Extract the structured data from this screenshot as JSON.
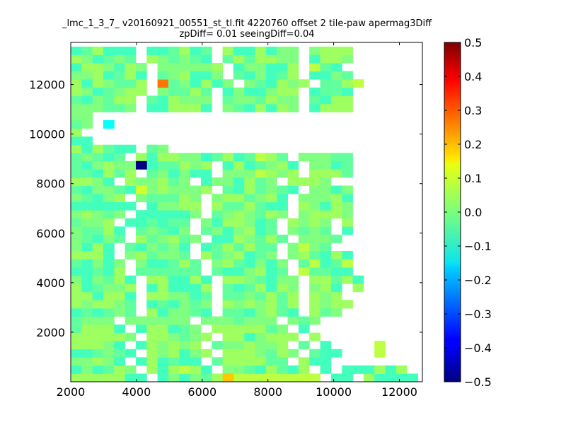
{
  "chart_data": {
    "type": "heatmap",
    "title_line1": "_lmc_1_3_7_ v20160921_00551_st_tl.fit 4220760 offset 2 tile-paw apermag3Diff",
    "title_line2": "zpDiff= 0.01 seeingDiff=0.04",
    "xlabel": "",
    "ylabel": "",
    "xlim": [
      2000,
      12700
    ],
    "ylim": [
      0,
      13700
    ],
    "x_ticks": [
      2000,
      4000,
      6000,
      8000,
      10000,
      12000
    ],
    "y_ticks": [
      2000,
      4000,
      6000,
      8000,
      10000,
      12000
    ],
    "colorbar": {
      "colormap": "jet",
      "range": [
        -0.5,
        0.5
      ],
      "ticks": [
        0.5,
        0.4,
        0.3,
        0.2,
        0.1,
        0.0,
        -0.1,
        -0.2,
        -0.3,
        -0.4,
        -0.5
      ],
      "tick_labels": [
        "0.5",
        "0.4",
        "0.3",
        "0.2",
        "0.1",
        "0.0",
        "−0.1",
        "−0.2",
        "−0.3",
        "−0.4",
        "−0.5"
      ]
    },
    "grid": false,
    "cell_size": [
      330,
      330
    ],
    "x_centers": [
      2165,
      2495,
      2825,
      3155,
      3485,
      3815,
      4145,
      4475,
      4805,
      5135,
      5465,
      5795,
      6125,
      6455,
      6785,
      7115,
      7445,
      7775,
      8105,
      8435,
      8765,
      9095,
      9425,
      9755,
      10085,
      10415,
      10745,
      11075,
      11405,
      11735,
      12065,
      12395
    ],
    "y_centers": [
      165,
      495,
      825,
      1155,
      1485,
      1815,
      2145,
      2475,
      2805,
      3135,
      3465,
      3795,
      4125,
      4455,
      4785,
      5115,
      5445,
      5775,
      6105,
      6435,
      6765,
      7095,
      7425,
      7755,
      8085,
      8415,
      8745,
      9075,
      9405,
      9735,
      10065,
      10395,
      10725,
      11055,
      11385,
      11715,
      12045,
      12375,
      12705,
      13035,
      13365
    ],
    "row_values": [
      "3333300 020213 99999999 00 30000N",
      "020132 303930 22103103 0 000303",
      "22320 030100 1333311 300 NNNN",
      "001210 323323 3332132 100 NNNN",
      "33320 032323 1223223 1 0",
      "333332 332123 3302333 3",
      "13330 033012 3333312 0 NNNN",
      "1222 222222 2221222 212 N",
      "010121 302210 1102310 312 N",
      "323321 010212 3232313 3233N",
      "330330 332201 1121313 323",
      "301223 030003 1013035 230 3",
      "202130 330030 3321022 33130",
      "00103 111111 1002301 01100",
      "10202 200131 2310202 13013",
      "3330 231221 3123012 231030",
      "2030 102120 0131311 2221",
      "21021 312312 0032131 2221",
      "21130 12102 1202301 2121 0",
      "1223 001011 2033201 3232 3",
      "23212 000002 1232132 23332",
      "000000 02233 3113100 32032",
      "21023 211132 2331230 22230",
      "102210 232223 1031210 2202",
      "3320 322312 0220312 3332",
      "110313 120200 2223323 3331",
      "102322 011323 0301230 2201",
      "12101 303322 1301031 22211",
      "303100 12",
      "00",
      "3",
      "12",
      "22",
      "222112 003330 2103032 0333",
      "102133 103222 1221322 1033",
      "3201233 21131 0200233 0110",
      "3032113 2120302 210323 1130",
      "2230130 123002 102013 0021",
      "0332232 222223 022003 210",
      "320121 321210 1313322 0332",
      "013000 001301 3003022 2333"
    ],
    "anomalies": [
      {
        "x": 6785,
        "y": 165,
        "value": 0.18
      },
      {
        "x": 4805,
        "y": 12045,
        "value": 0.26
      },
      {
        "x": 4145,
        "y": 7755,
        "value": 0.08
      },
      {
        "x": 4145,
        "y": 8745,
        "value": -0.5
      },
      {
        "x": 3155,
        "y": 10395,
        "value": -0.12
      },
      {
        "x": 9425,
        "y": 12705,
        "value": 0.06
      },
      {
        "x": 9425,
        "y": 4785,
        "value": 0.06
      },
      {
        "x": 10415,
        "y": 4785,
        "value": 0.06
      },
      {
        "x": 11405,
        "y": 1485,
        "value": 0.06
      },
      {
        "x": 11405,
        "y": 1155,
        "value": 0.06
      },
      {
        "x": 10745,
        "y": 12045,
        "value": 0.06
      },
      {
        "x": 7775,
        "y": 8415,
        "value": 0.06
      },
      {
        "x": 7775,
        "y": 9075,
        "value": 0.06
      },
      {
        "x": 9095,
        "y": 5445,
        "value": 0.06
      },
      {
        "x": 9095,
        "y": 4455,
        "value": 0.06
      },
      {
        "x": 5465,
        "y": 1155,
        "value": -0.06
      },
      {
        "x": 2825,
        "y": 5775,
        "value": -0.06
      },
      {
        "x": 3815,
        "y": 4125,
        "value": -0.06
      },
      {
        "x": 6125,
        "y": 9075,
        "value": -0.07
      },
      {
        "x": 3485,
        "y": 12705,
        "value": -0.05
      }
    ]
  }
}
